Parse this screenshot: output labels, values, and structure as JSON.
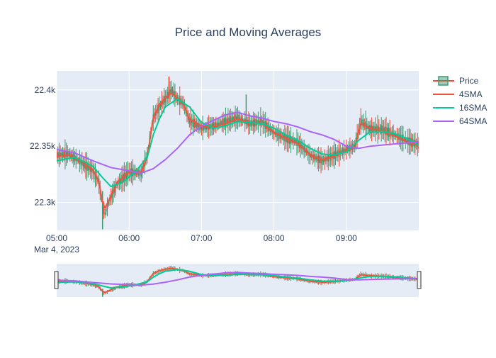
{
  "chart_data": {
    "type": "line",
    "title": "Price and Moving Averages",
    "x_tick_labels": [
      "05:00",
      "06:00",
      "07:00",
      "08:00",
      "09:00"
    ],
    "x_date_label": "Mar 4, 2023",
    "y_tick_labels": [
      "22.3k",
      "22.35k",
      "22.4k"
    ],
    "x_range": [
      "05:00",
      "10:00"
    ],
    "y_range": [
      22275,
      22417
    ],
    "grid": true,
    "legend_position": "top-right",
    "range_slider": true,
    "series": [
      {
        "name": "Price",
        "kind": "candlestick",
        "color": "#3d9970",
        "x": [
          "05:00",
          "05:10",
          "05:20",
          "05:30",
          "05:35",
          "05:38",
          "05:40",
          "05:45",
          "05:50",
          "06:00",
          "06:10",
          "06:15",
          "06:20",
          "06:25",
          "06:30",
          "06:35",
          "06:40",
          "06:45",
          "06:50",
          "07:00",
          "07:10",
          "07:20",
          "07:30",
          "07:40",
          "07:50",
          "08:00",
          "08:10",
          "08:20",
          "08:30",
          "08:40",
          "08:50",
          "09:00",
          "09:07",
          "09:12",
          "09:20",
          "09:30",
          "09:40",
          "09:50",
          "10:00"
        ],
        "values": [
          22342,
          22343,
          22336,
          22328,
          22318,
          22296,
          22290,
          22305,
          22316,
          22327,
          22326,
          22342,
          22375,
          22385,
          22392,
          22400,
          22392,
          22388,
          22373,
          22366,
          22368,
          22372,
          22375,
          22370,
          22372,
          22362,
          22357,
          22353,
          22342,
          22337,
          22342,
          22347,
          22350,
          22372,
          22365,
          22365,
          22360,
          22355,
          22351
        ],
        "min": 22276,
        "max": 22412
      },
      {
        "name": "4SMA",
        "color": "#ef553b",
        "x": [
          "05:00",
          "05:10",
          "05:20",
          "05:30",
          "05:35",
          "05:38",
          "05:40",
          "05:45",
          "05:50",
          "06:00",
          "06:10",
          "06:15",
          "06:20",
          "06:25",
          "06:30",
          "06:35",
          "06:40",
          "06:45",
          "06:50",
          "07:00",
          "07:10",
          "07:20",
          "07:30",
          "07:40",
          "07:50",
          "08:00",
          "08:10",
          "08:20",
          "08:30",
          "08:40",
          "08:50",
          "09:00",
          "09:07",
          "09:12",
          "09:20",
          "09:30",
          "09:40",
          "09:50",
          "10:00"
        ],
        "values": [
          22341,
          22342,
          22337,
          22329,
          22318,
          22300,
          22295,
          22306,
          22318,
          22327,
          22327,
          22340,
          22375,
          22387,
          22393,
          22397,
          22393,
          22387,
          22374,
          22368,
          22367,
          22370,
          22374,
          22371,
          22370,
          22362,
          22357,
          22352,
          22342,
          22338,
          22341,
          22346,
          22349,
          22370,
          22366,
          22363,
          22359,
          22354,
          22351
        ]
      },
      {
        "name": "16SMA",
        "color": "#00cc96",
        "x": [
          "05:00",
          "05:15",
          "05:30",
          "05:38",
          "05:45",
          "05:55",
          "06:05",
          "06:15",
          "06:20",
          "06:25",
          "06:30",
          "06:40",
          "06:50",
          "07:00",
          "07:10",
          "07:20",
          "07:30",
          "07:40",
          "07:50",
          "08:00",
          "08:10",
          "08:20",
          "08:30",
          "08:40",
          "08:50",
          "09:00",
          "09:10",
          "09:20",
          "09:30",
          "09:40",
          "09:50",
          "10:00"
        ],
        "values": [
          22337,
          22340,
          22332,
          22322,
          22314,
          22318,
          22327,
          22340,
          22360,
          22374,
          22385,
          22392,
          22385,
          22371,
          22366,
          22368,
          22372,
          22371,
          22370,
          22366,
          22360,
          22355,
          22348,
          22343,
          22342,
          22345,
          22355,
          22363,
          22363,
          22361,
          22357,
          22351
        ]
      },
      {
        "name": "64SMA",
        "color": "#ab63fa",
        "x": [
          "05:00",
          "05:15",
          "05:30",
          "05:45",
          "06:00",
          "06:10",
          "06:20",
          "06:30",
          "06:40",
          "06:50",
          "07:00",
          "07:10",
          "07:20",
          "07:30",
          "07:40",
          "07:50",
          "08:00",
          "08:10",
          "08:20",
          "08:30",
          "08:40",
          "08:50",
          "09:00",
          "09:10",
          "09:20",
          "09:30",
          "09:40",
          "09:50",
          "10:00"
        ],
        "values": [
          22347,
          22344,
          22337,
          22331,
          22328,
          22326,
          22330,
          22338,
          22348,
          22360,
          22368,
          22373,
          22378,
          22380,
          22377,
          22375,
          22372,
          22370,
          22367,
          22363,
          22360,
          22356,
          22350,
          22348,
          22350,
          22351,
          22352,
          22353,
          22354
        ]
      }
    ]
  }
}
